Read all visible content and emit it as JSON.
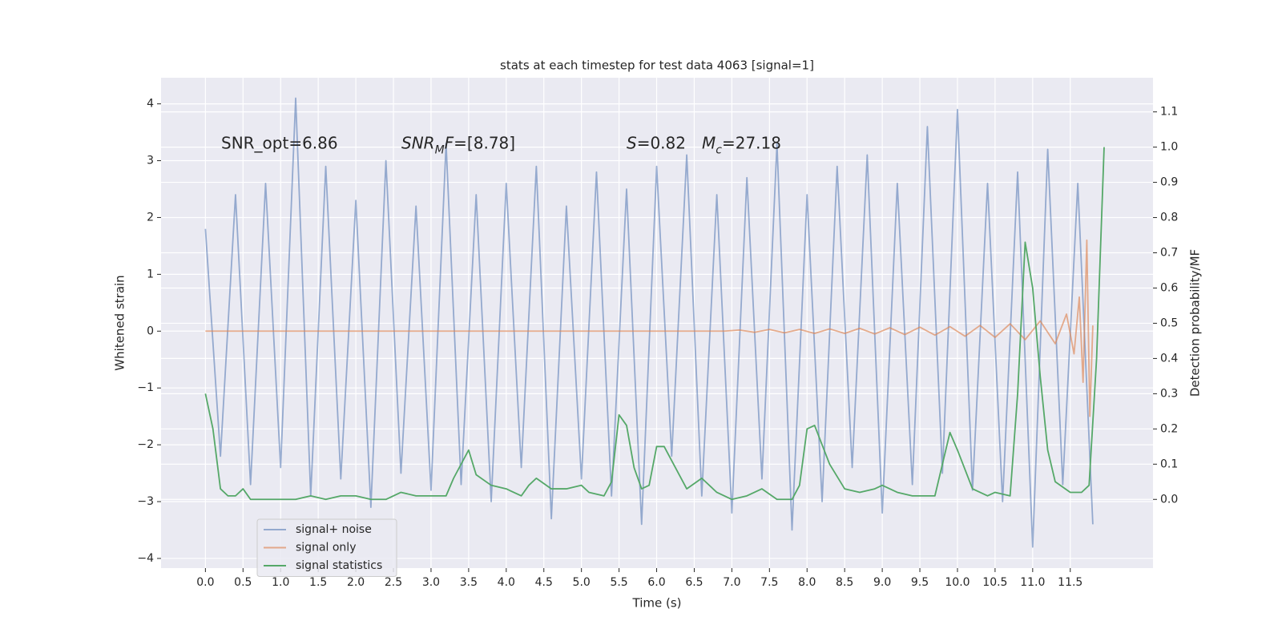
{
  "chart_data": {
    "type": "line",
    "title": "stats at each timestep for test data 4063 [signal=1]",
    "xlabel": "Time (s)",
    "ylabel": "Whitened strain",
    "y2label": "Detection probability/MF",
    "xlim": [
      -0.59,
      12.6
    ],
    "ylim": [
      -4.17,
      4.46
    ],
    "y2lim": [
      -0.195,
      1.197
    ],
    "xticks": [
      {
        "value": 0,
        "label": "0.0"
      },
      0.5,
      {
        "value": 1,
        "label": "1.0"
      },
      1.5,
      {
        "value": 2,
        "label": "2.0"
      },
      2.5,
      {
        "value": 3,
        "label": "3.0"
      },
      3.5,
      {
        "value": 4,
        "label": "4.0"
      },
      4.5,
      {
        "value": 5,
        "label": "5.0"
      },
      5.5,
      {
        "value": 6,
        "label": "6.0"
      },
      6.5,
      {
        "value": 7,
        "label": "7.0"
      },
      7.5,
      {
        "value": 8,
        "label": "8.0"
      },
      8.5,
      {
        "value": 9,
        "label": "9.0"
      },
      9.5,
      {
        "value": 10,
        "label": "10.0"
      },
      10.5,
      {
        "value": 11,
        "label": "11.0"
      },
      11.5
    ],
    "yticks": [
      {
        "value": -4,
        "label": "−4"
      },
      {
        "value": -3,
        "label": "−3"
      },
      {
        "value": -2,
        "label": "−2"
      },
      {
        "value": -1,
        "label": "−1"
      },
      0,
      1,
      2,
      3,
      4
    ],
    "y2ticks": [
      {
        "value": 0,
        "label": "0.0"
      },
      0.1,
      0.2,
      0.3,
      0.4,
      0.5,
      0.6,
      0.7,
      0.8,
      0.9,
      {
        "value": 1,
        "label": "1.0"
      },
      1.1
    ],
    "grid": true,
    "legend": "lower left",
    "annotations": [
      {
        "parts": [
          {
            "text": "SNR_opt=6.86"
          }
        ]
      },
      {
        "parts": [
          {
            "text": "SNR",
            "italic": true
          },
          {
            "text": "M",
            "italic": true,
            "sub": true
          },
          {
            "text": "F",
            "italic": true
          },
          {
            "text": "=[8.78]"
          }
        ]
      },
      {
        "parts": [
          {
            "text": "S",
            "italic": true
          },
          {
            "text": "=0.82"
          }
        ]
      },
      {
        "parts": [
          {
            "text": "M",
            "italic": true
          },
          {
            "text": "c",
            "italic": true,
            "sub": true
          },
          {
            "text": "=27.18"
          }
        ]
      }
    ],
    "series": [
      {
        "name": "signal+ noise",
        "color": "#4c72b0",
        "opacity": 0.55,
        "x": [
          0.0,
          0.2,
          0.4,
          0.6,
          0.8,
          1.0,
          1.2,
          1.4,
          1.6,
          1.8,
          2.0,
          2.2,
          2.4,
          2.6,
          2.8,
          3.0,
          3.2,
          3.4,
          3.6,
          3.8,
          4.0,
          4.2,
          4.4,
          4.6,
          4.8,
          5.0,
          5.2,
          5.4,
          5.6,
          5.8,
          6.0,
          6.2,
          6.4,
          6.6,
          6.8,
          7.0,
          7.2,
          7.4,
          7.6,
          7.8,
          8.0,
          8.2,
          8.4,
          8.6,
          8.8,
          9.0,
          9.2,
          9.4,
          9.6,
          9.8,
          10.0,
          10.2,
          10.4,
          10.6,
          10.8,
          11.0,
          11.2,
          11.4,
          11.6,
          11.8
        ],
        "values": [
          1.8,
          -2.2,
          2.4,
          -2.7,
          2.6,
          -2.4,
          4.1,
          -2.9,
          2.9,
          -2.6,
          2.3,
          -3.1,
          3.0,
          -2.5,
          2.2,
          -2.8,
          3.3,
          -2.7,
          2.4,
          -3.0,
          2.6,
          -2.4,
          2.9,
          -3.3,
          2.2,
          -2.6,
          2.8,
          -2.9,
          2.5,
          -3.4,
          2.9,
          -2.2,
          3.1,
          -2.9,
          2.4,
          -3.2,
          2.7,
          -2.6,
          3.3,
          -3.5,
          2.4,
          -3.0,
          2.9,
          -2.4,
          3.1,
          -3.2,
          2.6,
          -2.7,
          3.6,
          -2.5,
          3.9,
          -2.8,
          2.6,
          -3.0,
          2.8,
          -3.8,
          3.2,
          -2.7,
          2.6,
          -3.4
        ]
      },
      {
        "name": "signal only",
        "color": "#dd8452",
        "opacity": 0.65,
        "x": [
          0,
          6.9,
          7.1,
          7.3,
          7.5,
          7.7,
          7.9,
          8.1,
          8.3,
          8.5,
          8.7,
          8.9,
          9.1,
          9.3,
          9.5,
          9.7,
          9.9,
          10.1,
          10.3,
          10.5,
          10.7,
          10.9,
          11.1,
          11.3,
          11.45,
          11.55,
          11.62,
          11.67,
          11.72,
          11.76,
          11.8
        ],
        "values": [
          0,
          0,
          0.02,
          -0.02,
          0.03,
          -0.03,
          0.03,
          -0.04,
          0.04,
          -0.04,
          0.05,
          -0.05,
          0.06,
          -0.06,
          0.07,
          -0.07,
          0.08,
          -0.09,
          0.1,
          -0.11,
          0.13,
          -0.15,
          0.18,
          -0.22,
          0.3,
          -0.4,
          0.6,
          -0.9,
          1.6,
          -1.5,
          0.1
        ]
      },
      {
        "name": "signal statistics",
        "color": "#55a868",
        "opacity": 1,
        "axis": "y2",
        "x": [
          0.0,
          0.1,
          0.2,
          0.3,
          0.4,
          0.5,
          0.6,
          0.8,
          1.0,
          1.2,
          1.4,
          1.6,
          1.8,
          2.0,
          2.2,
          2.4,
          2.6,
          2.8,
          3.0,
          3.2,
          3.3,
          3.5,
          3.6,
          3.8,
          4.0,
          4.2,
          4.3,
          4.4,
          4.6,
          4.8,
          5.0,
          5.1,
          5.3,
          5.4,
          5.5,
          5.6,
          5.7,
          5.8,
          5.9,
          6.0,
          6.1,
          6.2,
          6.4,
          6.6,
          6.8,
          7.0,
          7.2,
          7.4,
          7.6,
          7.8,
          7.9,
          8.0,
          8.1,
          8.3,
          8.5,
          8.7,
          8.9,
          9.0,
          9.2,
          9.4,
          9.6,
          9.7,
          9.8,
          9.9,
          10.0,
          10.2,
          10.4,
          10.5,
          10.7,
          10.8,
          10.9,
          11.0,
          11.1,
          11.2,
          11.3,
          11.5,
          11.65,
          11.75,
          11.85,
          11.95
        ],
        "values": [
          0.3,
          0.2,
          0.03,
          0.01,
          0.01,
          0.03,
          0.0,
          0.0,
          0.0,
          0.0,
          0.01,
          0.0,
          0.01,
          0.01,
          0.0,
          0.0,
          0.02,
          0.01,
          0.01,
          0.01,
          0.06,
          0.14,
          0.07,
          0.04,
          0.03,
          0.01,
          0.04,
          0.06,
          0.03,
          0.03,
          0.04,
          0.02,
          0.01,
          0.05,
          0.24,
          0.21,
          0.09,
          0.03,
          0.04,
          0.15,
          0.15,
          0.11,
          0.03,
          0.06,
          0.02,
          0.0,
          0.01,
          0.03,
          0.0,
          0.0,
          0.04,
          0.2,
          0.21,
          0.1,
          0.03,
          0.02,
          0.03,
          0.04,
          0.02,
          0.01,
          0.01,
          0.01,
          0.1,
          0.19,
          0.14,
          0.03,
          0.01,
          0.02,
          0.01,
          0.3,
          0.73,
          0.6,
          0.35,
          0.14,
          0.05,
          0.02,
          0.02,
          0.04,
          0.4,
          1.0
        ]
      }
    ]
  }
}
